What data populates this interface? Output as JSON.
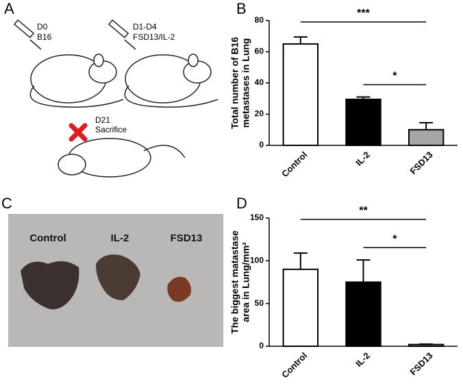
{
  "panel_a": {
    "label": "A",
    "step1": [
      "D0",
      "B16"
    ],
    "step2": [
      "D1-D4",
      "FSD13/IL-2"
    ],
    "step3": [
      "D21",
      "Sacrifice"
    ]
  },
  "panel_c": {
    "label": "C",
    "groups": [
      "Control",
      "IL-2",
      "FSD13"
    ]
  },
  "chart_data": [
    {
      "type": "bar",
      "panel": "B",
      "ylabel": [
        "Total number of B16",
        "metastases in Lung"
      ],
      "categories": [
        "Control",
        "IL-2",
        "FSD13"
      ],
      "values": [
        65,
        29.5,
        10
      ],
      "errors": [
        4.5,
        1.5,
        4.5
      ],
      "colors": [
        "#ffffff",
        "#000000",
        "#a6a6a6"
      ],
      "ylim": [
        0,
        80
      ],
      "yticks": [
        0,
        20,
        40,
        60,
        80
      ],
      "significance": [
        {
          "from": 0,
          "to": 2,
          "label": "***"
        },
        {
          "from": 1,
          "to": 2,
          "label": "*"
        }
      ]
    },
    {
      "type": "bar",
      "panel": "D",
      "ylabel": [
        "The biggest matastase",
        "area in Lung/mm²"
      ],
      "categories": [
        "Control",
        "IL-2",
        "FSD13"
      ],
      "values": [
        90,
        75,
        2
      ],
      "errors": [
        19,
        26,
        0.5
      ],
      "colors": [
        "#ffffff",
        "#000000",
        "#a6a6a6"
      ],
      "ylim": [
        0,
        150
      ],
      "yticks": [
        0,
        50,
        100,
        150
      ],
      "significance": [
        {
          "from": 0,
          "to": 2,
          "label": "**"
        },
        {
          "from": 1,
          "to": 2,
          "label": "*"
        }
      ]
    }
  ]
}
